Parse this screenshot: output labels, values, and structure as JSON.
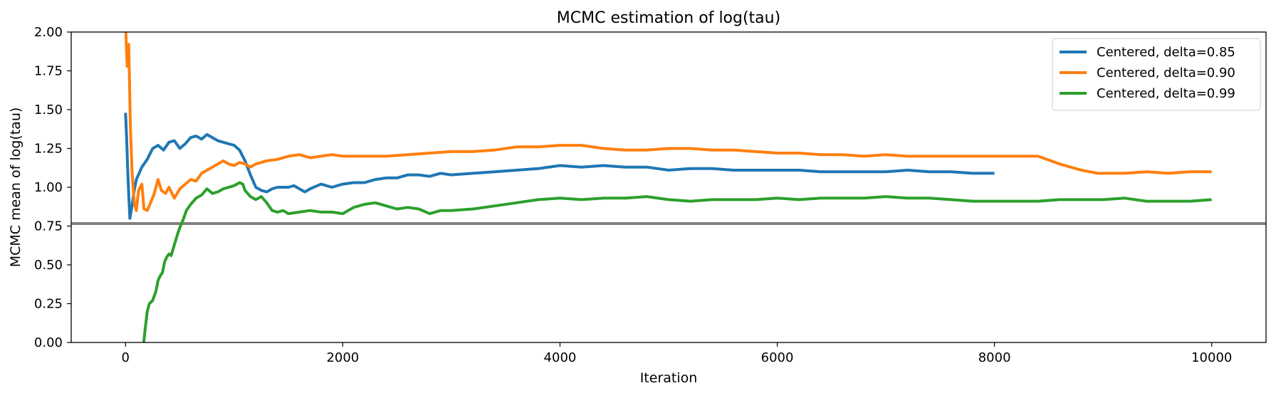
{
  "chart_data": {
    "type": "line",
    "title": "MCMC estimation of log(tau)",
    "xlabel": "Iteration",
    "ylabel": "MCMC mean of log(tau)",
    "xlim": [
      -500,
      10500
    ],
    "ylim": [
      0,
      2
    ],
    "x_ticks": [
      0,
      2000,
      4000,
      6000,
      8000,
      10000
    ],
    "x_tick_labels": [
      "0",
      "2000",
      "4000",
      "6000",
      "8000",
      "10000"
    ],
    "y_ticks": [
      0,
      0.25,
      0.5,
      0.75,
      1.0,
      1.25,
      1.5,
      1.75,
      2.0
    ],
    "y_tick_labels": [
      "0.00",
      "0.25",
      "0.50",
      "0.75",
      "1.00",
      "1.25",
      "1.50",
      "1.75",
      "2.00"
    ],
    "grid": false,
    "legend_position": "top-right",
    "reference_line": {
      "y": 0.766,
      "color": "#808080"
    },
    "series": [
      {
        "name": "Centered, delta=0.85",
        "color": "#1f77b4",
        "points": [
          [
            0,
            1.48
          ],
          [
            10,
            1.32
          ],
          [
            20,
            1.12
          ],
          [
            30,
            0.95
          ],
          [
            40,
            0.8
          ],
          [
            60,
            0.88
          ],
          [
            80,
            0.98
          ],
          [
            100,
            1.05
          ],
          [
            150,
            1.13
          ],
          [
            200,
            1.18
          ],
          [
            250,
            1.25
          ],
          [
            300,
            1.27
          ],
          [
            350,
            1.24
          ],
          [
            400,
            1.29
          ],
          [
            450,
            1.3
          ],
          [
            500,
            1.25
          ],
          [
            550,
            1.28
          ],
          [
            600,
            1.32
          ],
          [
            650,
            1.33
          ],
          [
            700,
            1.31
          ],
          [
            750,
            1.34
          ],
          [
            800,
            1.32
          ],
          [
            850,
            1.3
          ],
          [
            900,
            1.29
          ],
          [
            950,
            1.28
          ],
          [
            1000,
            1.27
          ],
          [
            1050,
            1.24
          ],
          [
            1100,
            1.17
          ],
          [
            1150,
            1.08
          ],
          [
            1200,
            1.0
          ],
          [
            1250,
            0.98
          ],
          [
            1300,
            0.97
          ],
          [
            1350,
            0.99
          ],
          [
            1400,
            1.0
          ],
          [
            1500,
            1.0
          ],
          [
            1550,
            1.01
          ],
          [
            1650,
            0.97
          ],
          [
            1700,
            0.99
          ],
          [
            1800,
            1.02
          ],
          [
            1900,
            1.0
          ],
          [
            2000,
            1.02
          ],
          [
            2100,
            1.03
          ],
          [
            2200,
            1.03
          ],
          [
            2300,
            1.05
          ],
          [
            2400,
            1.06
          ],
          [
            2500,
            1.06
          ],
          [
            2600,
            1.08
          ],
          [
            2700,
            1.08
          ],
          [
            2800,
            1.07
          ],
          [
            2900,
            1.09
          ],
          [
            3000,
            1.08
          ],
          [
            3200,
            1.09
          ],
          [
            3400,
            1.1
          ],
          [
            3600,
            1.11
          ],
          [
            3800,
            1.12
          ],
          [
            4000,
            1.14
          ],
          [
            4200,
            1.13
          ],
          [
            4400,
            1.14
          ],
          [
            4600,
            1.13
          ],
          [
            4800,
            1.13
          ],
          [
            5000,
            1.11
          ],
          [
            5200,
            1.12
          ],
          [
            5400,
            1.12
          ],
          [
            5600,
            1.11
          ],
          [
            5800,
            1.11
          ],
          [
            6000,
            1.11
          ],
          [
            6200,
            1.11
          ],
          [
            6400,
            1.1
          ],
          [
            6600,
            1.1
          ],
          [
            6800,
            1.1
          ],
          [
            7000,
            1.1
          ],
          [
            7200,
            1.11
          ],
          [
            7400,
            1.1
          ],
          [
            7600,
            1.1
          ],
          [
            7800,
            1.09
          ],
          [
            8000,
            1.09
          ]
        ]
      },
      {
        "name": "Centered, delta=0.90",
        "color": "#ff7f0e",
        "points": [
          [
            0,
            2.05
          ],
          [
            15,
            1.78
          ],
          [
            30,
            1.92
          ],
          [
            45,
            1.4
          ],
          [
            60,
            1.1
          ],
          [
            80,
            0.9
          ],
          [
            100,
            0.85
          ],
          [
            120,
            0.98
          ],
          [
            150,
            1.02
          ],
          [
            170,
            0.86
          ],
          [
            200,
            0.85
          ],
          [
            230,
            0.9
          ],
          [
            260,
            0.95
          ],
          [
            300,
            1.05
          ],
          [
            330,
            0.98
          ],
          [
            370,
            0.96
          ],
          [
            400,
            1.0
          ],
          [
            450,
            0.93
          ],
          [
            500,
            0.99
          ],
          [
            550,
            1.02
          ],
          [
            600,
            1.05
          ],
          [
            650,
            1.04
          ],
          [
            700,
            1.09
          ],
          [
            750,
            1.11
          ],
          [
            800,
            1.13
          ],
          [
            850,
            1.15
          ],
          [
            900,
            1.17
          ],
          [
            950,
            1.15
          ],
          [
            1000,
            1.14
          ],
          [
            1050,
            1.16
          ],
          [
            1100,
            1.15
          ],
          [
            1150,
            1.13
          ],
          [
            1200,
            1.15
          ],
          [
            1300,
            1.17
          ],
          [
            1400,
            1.18
          ],
          [
            1500,
            1.2
          ],
          [
            1600,
            1.21
          ],
          [
            1700,
            1.19
          ],
          [
            1800,
            1.2
          ],
          [
            1900,
            1.21
          ],
          [
            2000,
            1.2
          ],
          [
            2200,
            1.2
          ],
          [
            2400,
            1.2
          ],
          [
            2600,
            1.21
          ],
          [
            2800,
            1.22
          ],
          [
            3000,
            1.23
          ],
          [
            3200,
            1.23
          ],
          [
            3400,
            1.24
          ],
          [
            3600,
            1.26
          ],
          [
            3800,
            1.26
          ],
          [
            4000,
            1.27
          ],
          [
            4200,
            1.27
          ],
          [
            4400,
            1.25
          ],
          [
            4600,
            1.24
          ],
          [
            4800,
            1.24
          ],
          [
            5000,
            1.25
          ],
          [
            5200,
            1.25
          ],
          [
            5400,
            1.24
          ],
          [
            5600,
            1.24
          ],
          [
            5800,
            1.23
          ],
          [
            6000,
            1.22
          ],
          [
            6200,
            1.22
          ],
          [
            6400,
            1.21
          ],
          [
            6600,
            1.21
          ],
          [
            6800,
            1.2
          ],
          [
            7000,
            1.21
          ],
          [
            7200,
            1.2
          ],
          [
            7400,
            1.2
          ],
          [
            7600,
            1.2
          ],
          [
            7800,
            1.2
          ],
          [
            8000,
            1.2
          ],
          [
            8200,
            1.2
          ],
          [
            8400,
            1.2
          ],
          [
            8600,
            1.15
          ],
          [
            8800,
            1.11
          ],
          [
            8950,
            1.09
          ],
          [
            9200,
            1.09
          ],
          [
            9400,
            1.1
          ],
          [
            9600,
            1.09
          ],
          [
            9800,
            1.1
          ],
          [
            10000,
            1.1
          ]
        ]
      },
      {
        "name": "Centered, delta=0.99",
        "color": "#2ca02c",
        "points": [
          [
            160,
            -0.05
          ],
          [
            180,
            0.08
          ],
          [
            200,
            0.2
          ],
          [
            220,
            0.25
          ],
          [
            250,
            0.27
          ],
          [
            280,
            0.33
          ],
          [
            300,
            0.4
          ],
          [
            320,
            0.43
          ],
          [
            340,
            0.45
          ],
          [
            360,
            0.52
          ],
          [
            380,
            0.55
          ],
          [
            400,
            0.57
          ],
          [
            420,
            0.56
          ],
          [
            450,
            0.63
          ],
          [
            480,
            0.7
          ],
          [
            500,
            0.74
          ],
          [
            530,
            0.79
          ],
          [
            560,
            0.85
          ],
          [
            600,
            0.89
          ],
          [
            650,
            0.93
          ],
          [
            700,
            0.95
          ],
          [
            750,
            0.99
          ],
          [
            800,
            0.96
          ],
          [
            850,
            0.97
          ],
          [
            900,
            0.99
          ],
          [
            950,
            1.0
          ],
          [
            1000,
            1.01
          ],
          [
            1050,
            1.03
          ],
          [
            1080,
            1.02
          ],
          [
            1100,
            0.98
          ],
          [
            1150,
            0.94
          ],
          [
            1200,
            0.92
          ],
          [
            1250,
            0.94
          ],
          [
            1300,
            0.9
          ],
          [
            1350,
            0.85
          ],
          [
            1400,
            0.84
          ],
          [
            1450,
            0.85
          ],
          [
            1500,
            0.83
          ],
          [
            1600,
            0.84
          ],
          [
            1700,
            0.85
          ],
          [
            1800,
            0.84
          ],
          [
            1900,
            0.84
          ],
          [
            2000,
            0.83
          ],
          [
            2100,
            0.87
          ],
          [
            2200,
            0.89
          ],
          [
            2300,
            0.9
          ],
          [
            2400,
            0.88
          ],
          [
            2500,
            0.86
          ],
          [
            2600,
            0.87
          ],
          [
            2700,
            0.86
          ],
          [
            2800,
            0.83
          ],
          [
            2900,
            0.85
          ],
          [
            3000,
            0.85
          ],
          [
            3200,
            0.86
          ],
          [
            3400,
            0.88
          ],
          [
            3600,
            0.9
          ],
          [
            3800,
            0.92
          ],
          [
            4000,
            0.93
          ],
          [
            4200,
            0.92
          ],
          [
            4400,
            0.93
          ],
          [
            4600,
            0.93
          ],
          [
            4800,
            0.94
          ],
          [
            5000,
            0.92
          ],
          [
            5200,
            0.91
          ],
          [
            5400,
            0.92
          ],
          [
            5600,
            0.92
          ],
          [
            5800,
            0.92
          ],
          [
            6000,
            0.93
          ],
          [
            6200,
            0.92
          ],
          [
            6400,
            0.93
          ],
          [
            6600,
            0.93
          ],
          [
            6800,
            0.93
          ],
          [
            7000,
            0.94
          ],
          [
            7200,
            0.93
          ],
          [
            7400,
            0.93
          ],
          [
            7600,
            0.92
          ],
          [
            7800,
            0.91
          ],
          [
            8000,
            0.91
          ],
          [
            8200,
            0.91
          ],
          [
            8400,
            0.91
          ],
          [
            8600,
            0.92
          ],
          [
            8800,
            0.92
          ],
          [
            9000,
            0.92
          ],
          [
            9200,
            0.93
          ],
          [
            9400,
            0.91
          ],
          [
            9600,
            0.91
          ],
          [
            9800,
            0.91
          ],
          [
            10000,
            0.92
          ]
        ]
      }
    ]
  }
}
